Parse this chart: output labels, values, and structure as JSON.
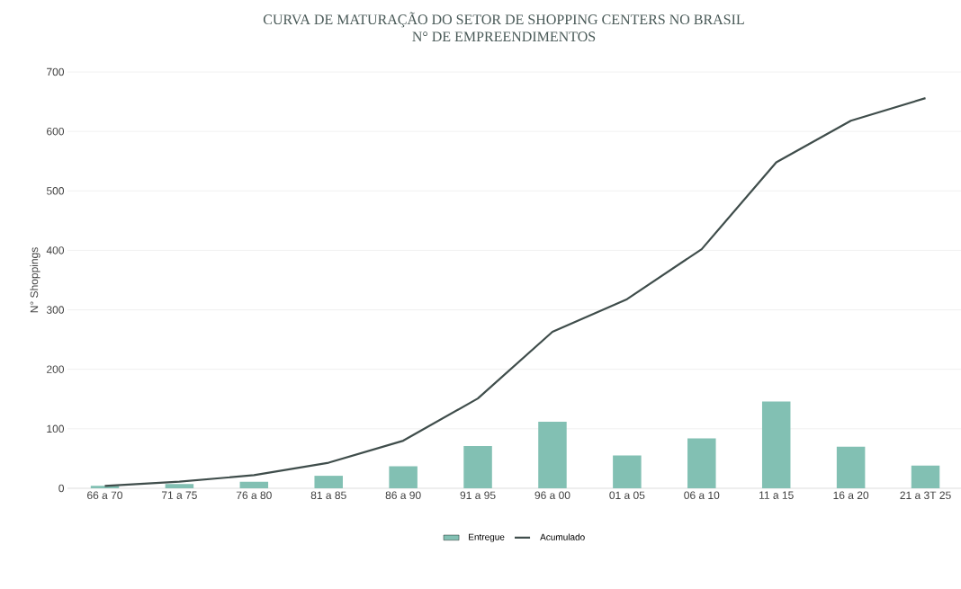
{
  "chart_data": {
    "type": "bar",
    "title": "CURVA DE MATURAÇÃO DO SETOR DE SHOPPING CENTERS NO BRASIL",
    "subtitle": "N° DE EMPREENDIMENTOS",
    "ylabel": "N° Shoppings",
    "categories": [
      "66 a 70",
      "71 a 75",
      "76 a 80",
      "81 a 85",
      "86 a 90",
      "91 a 95",
      "96 a 00",
      "01 a 05",
      "06 a 10",
      "11 a 15",
      "16 a 20",
      "21 a 3T 25"
    ],
    "series": [
      {
        "name": "Entregue",
        "color": "#82c0b3",
        "values": [
          4,
          7,
          11,
          21,
          37,
          71,
          112,
          55,
          84,
          146,
          70,
          38
        ]
      },
      {
        "name": "Acumulado",
        "type": "line",
        "color": "#3f4d4b",
        "values": [
          4,
          11,
          22,
          43,
          80,
          151,
          263,
          318,
          402,
          548,
          618,
          656
        ]
      }
    ],
    "ylim": [
      0,
      700
    ],
    "yticks": [
      0,
      100,
      200,
      300,
      400,
      500,
      600,
      700
    ],
    "grid": "y",
    "legend": "bottom",
    "marker": "none",
    "line_style": "solid"
  }
}
